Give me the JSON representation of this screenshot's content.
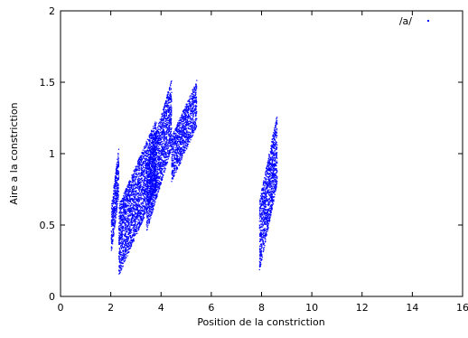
{
  "chart_data": {
    "type": "scatter",
    "xlabel": "Position de la constriction",
    "ylabel": "Aire a la constriction",
    "xlim": [
      0,
      16
    ],
    "ylim": [
      0,
      2
    ],
    "xticks": [
      0,
      2,
      4,
      6,
      8,
      10,
      12,
      14,
      16
    ],
    "yticks": [
      0,
      0.5,
      1,
      1.5,
      2
    ],
    "legend_position": "top-right",
    "grid": false,
    "series": [
      {
        "name": "/a/",
        "color": "#0000ff",
        "clusters": [
          {
            "x": [
              2.0,
              2.3
            ],
            "y": [
              0.3,
              1.05
            ]
          },
          {
            "x": [
              2.3,
              3.8
            ],
            "y": [
              0.15,
              1.25
            ]
          },
          {
            "x": [
              3.4,
              4.4
            ],
            "y": [
              0.45,
              1.52
            ]
          },
          {
            "x": [
              4.4,
              5.4
            ],
            "y": [
              0.8,
              1.52
            ]
          },
          {
            "x": [
              7.9,
              8.6
            ],
            "y": [
              0.18,
              1.28
            ]
          }
        ]
      }
    ]
  }
}
